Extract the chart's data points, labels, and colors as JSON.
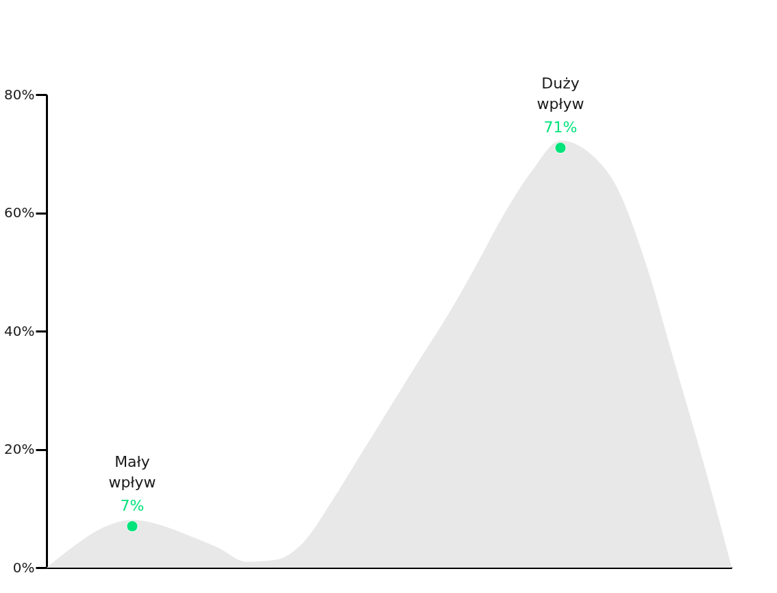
{
  "chart_data": {
    "type": "area",
    "categories": [
      null,
      null,
      null,
      null,
      null,
      null,
      null,
      null,
      null,
      null,
      null,
      null,
      null,
      null,
      null,
      null,
      null,
      null,
      null,
      null,
      null,
      null,
      null,
      null,
      null
    ],
    "ylim": [
      0,
      80
    ],
    "yticks": [
      {
        "value": 0,
        "label": "0%"
      },
      {
        "value": 20,
        "label": "20%"
      },
      {
        "value": 40,
        "label": "40%"
      },
      {
        "value": 60,
        "label": "60%"
      },
      {
        "value": 80,
        "label": "80%"
      }
    ],
    "grid": false,
    "tick_labels": "y",
    "series": [
      {
        "color": "#e8e8e8",
        "values": [
          0,
          3.8,
          6.8,
          8.1,
          7.2,
          5.4,
          3.4,
          1.0,
          1.3,
          4.3,
          11.3,
          19.1,
          26.9,
          34.7,
          42.3,
          50.7,
          59.6,
          67.1,
          72.2,
          70.2,
          64.1,
          51.3,
          34.6,
          17.9,
          0
        ]
      },
      {
        "type": "scatter",
        "color": "#00e27a",
        "marker": "circle",
        "values": [
          null,
          null,
          null,
          7,
          null,
          null,
          null,
          null,
          null,
          null,
          null,
          null,
          null,
          null,
          null,
          null,
          null,
          null,
          71,
          null,
          null,
          null,
          null,
          null,
          null
        ],
        "value_labels": [
          null,
          null,
          null,
          "7%",
          null,
          null,
          null,
          null,
          null,
          null,
          null,
          null,
          null,
          null,
          null,
          null,
          null,
          null,
          "71%",
          null,
          null,
          null,
          null,
          null,
          null
        ]
      }
    ],
    "annotations": [
      "Mały wpływ",
      "Duży wpływ"
    ]
  }
}
